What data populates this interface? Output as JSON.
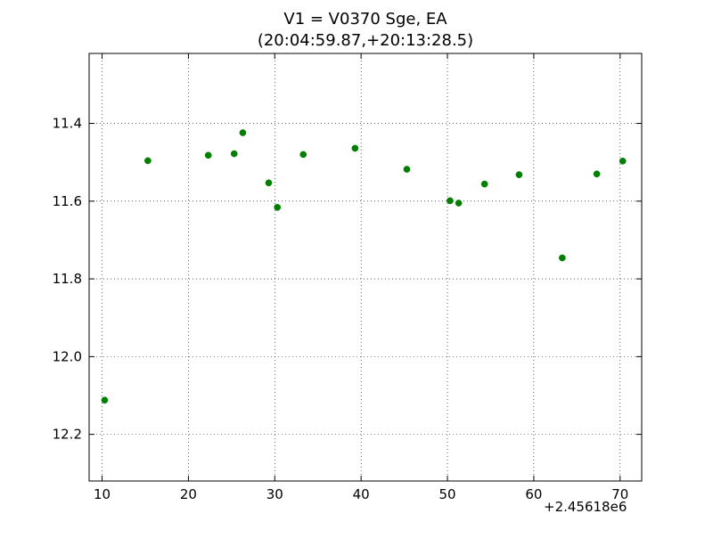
{
  "chart_data": {
    "type": "scatter",
    "title": "V1 = V0370 Sge, EA",
    "subtitle": "(20:04:59.87,+20:13:28.5)",
    "x_offset_label": "+2.45618e6",
    "xlim": [
      8.5,
      72.5
    ],
    "ylim": [
      12.32,
      11.22
    ],
    "y_inverted": true,
    "x_ticks": [
      10,
      20,
      30,
      40,
      50,
      60,
      70
    ],
    "y_ticks": [
      11.4,
      11.6,
      11.8,
      12.0,
      12.2
    ],
    "x_tick_labels": [
      "10",
      "20",
      "30",
      "40",
      "50",
      "60",
      "70"
    ],
    "y_tick_labels": [
      "11.4",
      "11.6",
      "11.8",
      "12.0",
      "12.2"
    ],
    "grid": true,
    "marker_color": "#007f00",
    "series": [
      {
        "x": [
          10.3,
          15.3,
          22.3,
          25.3,
          26.3,
          29.3,
          30.3,
          33.3,
          39.3,
          45.3,
          50.3,
          51.3,
          54.3,
          58.3,
          63.3,
          67.3,
          70.3
        ],
        "y": [
          12.112,
          11.496,
          11.482,
          11.478,
          11.424,
          11.553,
          11.616,
          11.48,
          11.464,
          11.518,
          11.599,
          11.605,
          11.556,
          11.532,
          11.746,
          11.53,
          11.497
        ]
      }
    ]
  }
}
